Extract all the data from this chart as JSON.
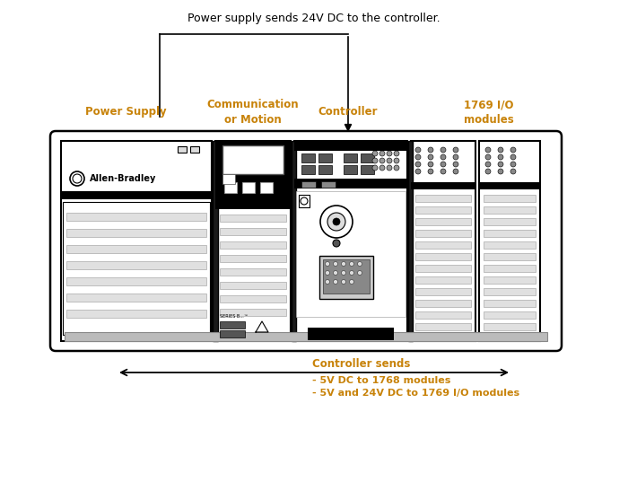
{
  "bg_color": "#ffffff",
  "text_color": "#000000",
  "orange_color": "#c8830a",
  "title_text": "Power supply sends 24V DC to the controller.",
  "label_power_supply": "Power Supply",
  "label_comm": "Communication\nor Motion",
  "label_controller": "Controller",
  "label_io": "1769 I/O\nmodules",
  "bottom_title": "Controller sends",
  "bottom_line1": "- 5V DC to 1768 modules",
  "bottom_line2": "- 5V and 24V DC to 1769 I/O modules",
  "fig_width": 7.0,
  "fig_height": 5.37,
  "dpi": 100
}
